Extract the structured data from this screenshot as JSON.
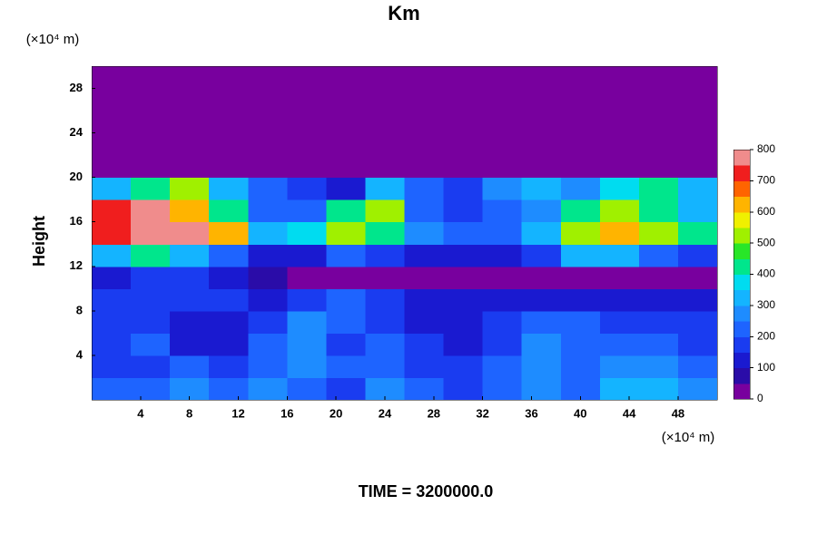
{
  "chart_data": {
    "type": "heatmap",
    "title": "Km",
    "ylabel": "Height",
    "ylabel_unit": "(×10⁴ m)",
    "xlabel_unit": "(×10⁴ m)",
    "footer": "TIME = 3200000.0",
    "xlim": [
      0,
      51.2
    ],
    "ylim": [
      0,
      30
    ],
    "xticks": [
      4,
      8,
      12,
      16,
      20,
      24,
      28,
      32,
      36,
      40,
      44,
      48
    ],
    "yticks": [
      4,
      8,
      12,
      16,
      20,
      24,
      28
    ],
    "xbins": [
      0,
      3.2,
      6.4,
      9.6,
      12.8,
      16,
      19.2,
      22.4,
      25.6,
      28.8,
      32,
      35.2,
      38.4,
      41.6,
      44.8,
      48,
      51.2
    ],
    "ybins": [
      0,
      2,
      4,
      6,
      8,
      10,
      12,
      14,
      16,
      18,
      20,
      22,
      24,
      26,
      28,
      30
    ],
    "z": [
      [
        200,
        200,
        250,
        200,
        250,
        200,
        150,
        250,
        200,
        150,
        220,
        250,
        200,
        300,
        300,
        250
      ],
      [
        150,
        180,
        200,
        150,
        220,
        250,
        200,
        200,
        150,
        150,
        200,
        250,
        200,
        250,
        250,
        200
      ],
      [
        150,
        200,
        120,
        100,
        200,
        250,
        150,
        200,
        150,
        120,
        180,
        250,
        200,
        200,
        200,
        150
      ],
      [
        150,
        150,
        120,
        100,
        150,
        250,
        200,
        150,
        120,
        120,
        150,
        200,
        200,
        180,
        150,
        150
      ],
      [
        150,
        150,
        150,
        150,
        100,
        150,
        200,
        150,
        100,
        100,
        100,
        100,
        100,
        100,
        100,
        100
      ],
      [
        100,
        150,
        150,
        100,
        50,
        0,
        0,
        0,
        0,
        0,
        0,
        0,
        0,
        0,
        0,
        0
      ],
      [
        300,
        400,
        300,
        200,
        100,
        100,
        200,
        150,
        100,
        100,
        100,
        150,
        300,
        300,
        200,
        150
      ],
      [
        700,
        800,
        800,
        600,
        300,
        350,
        500,
        400,
        250,
        200,
        200,
        300,
        500,
        600,
        500,
        400
      ],
      [
        700,
        800,
        600,
        400,
        200,
        200,
        400,
        500,
        200,
        150,
        200,
        250,
        400,
        500,
        400,
        300
      ],
      [
        300,
        400,
        500,
        300,
        200,
        150,
        100,
        300,
        200,
        150,
        250,
        300,
        250,
        350,
        400,
        300
      ],
      [
        0,
        0,
        0,
        0,
        0,
        0,
        0,
        0,
        0,
        0,
        0,
        0,
        0,
        0,
        0,
        0
      ],
      [
        0,
        0,
        0,
        0,
        0,
        0,
        0,
        0,
        0,
        0,
        0,
        0,
        0,
        0,
        0,
        0
      ],
      [
        0,
        0,
        0,
        0,
        0,
        0,
        0,
        0,
        0,
        0,
        0,
        0,
        0,
        0,
        0,
        0
      ],
      [
        0,
        0,
        0,
        0,
        0,
        0,
        0,
        0,
        0,
        0,
        0,
        0,
        0,
        0,
        0,
        0
      ],
      [
        0,
        0,
        0,
        0,
        0,
        0,
        0,
        0,
        0,
        0,
        0,
        0,
        0,
        0,
        0,
        0
      ]
    ],
    "zlim": [
      0,
      800
    ],
    "zticks": [
      0,
      100,
      200,
      300,
      400,
      500,
      600,
      700,
      800
    ],
    "colors": [
      "#78009e",
      "#2a0ca8",
      "#1a1ad0",
      "#1a3cf0",
      "#1e64ff",
      "#1e8cff",
      "#14b4ff",
      "#00dcf0",
      "#00e68c",
      "#28e628",
      "#a0f000",
      "#f0f000",
      "#ffb400",
      "#ff6400",
      "#f01e1e",
      "#f08c8c"
    ]
  }
}
